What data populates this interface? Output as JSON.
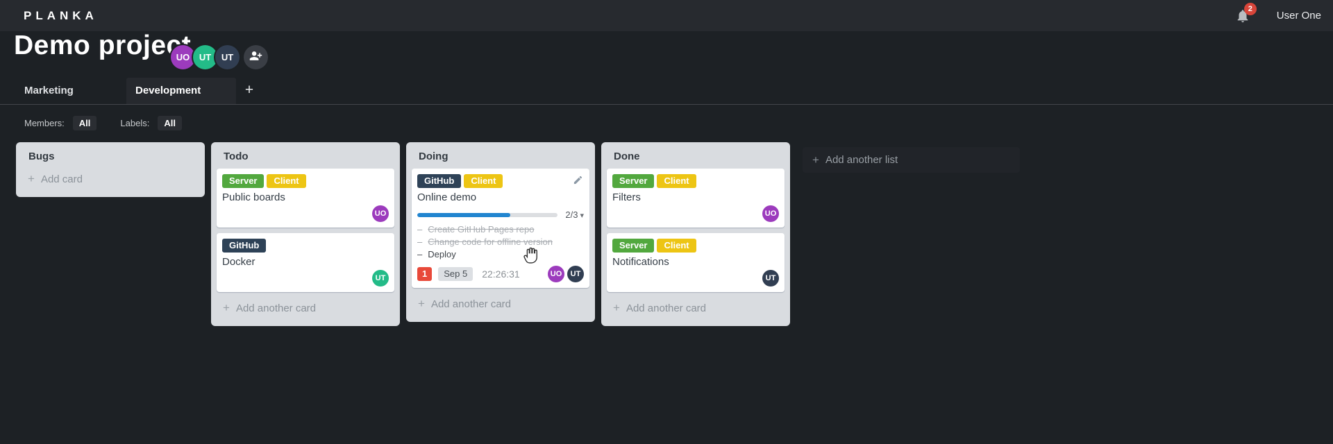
{
  "theme": {
    "topbar_bg": "#272a2f",
    "body_bg": "#1d2125",
    "list_bg": "#d9dce0",
    "card_bg": "#ffffff",
    "progress_blue": "#2185d0",
    "danger_red": "#e8493a"
  },
  "header": {
    "logo": "PLANKA",
    "notification_icon": "bell-icon",
    "notification_count": "2",
    "user_name": "User One"
  },
  "project": {
    "title": "Demo project",
    "members": [
      {
        "initials": "UO",
        "color": "#9c3bbd"
      },
      {
        "initials": "UT",
        "color": "#23bb88"
      },
      {
        "initials": "UT",
        "color": "#313e52"
      }
    ],
    "add_member_icon": "add-user-icon"
  },
  "tabs": {
    "items": [
      {
        "label": "Marketing",
        "active": false
      },
      {
        "label": "Development",
        "active": true
      }
    ],
    "add_label": "+"
  },
  "filters": {
    "members_label": "Members:",
    "members_value": "All",
    "labels_label": "Labels:",
    "labels_value": "All"
  },
  "board": {
    "add_list_plus": "+",
    "add_list_label": "Add another list",
    "lists": [
      {
        "title": "Bugs",
        "footer_plus": "+",
        "footer": "Add card",
        "cards": []
      },
      {
        "title": "Todo",
        "footer_plus": "+",
        "footer": "Add another card",
        "cards": [
          {
            "labels": [
              {
                "text": "Server",
                "color": "#52a83e"
              },
              {
                "text": "Client",
                "color": "#edc514"
              }
            ],
            "title": "Public boards",
            "members": [
              {
                "initials": "UO",
                "color": "#9c3bbd"
              }
            ]
          },
          {
            "labels": [
              {
                "text": "GitHub",
                "color": "#2e4257"
              }
            ],
            "title": "Docker",
            "members": [
              {
                "initials": "UT",
                "color": "#23bb88"
              }
            ]
          }
        ]
      },
      {
        "title": "Doing",
        "footer_plus": "+",
        "footer": "Add another card",
        "cards": [
          {
            "labels": [
              {
                "text": "GitHub",
                "color": "#2e4257"
              },
              {
                "text": "Client",
                "color": "#edc514"
              }
            ],
            "title": "Online demo",
            "edit_icon": "pencil-icon",
            "progress": {
              "percent": 66,
              "label": "2/3",
              "caret": "▾",
              "caret_icon": "caret-down-icon"
            },
            "tasks": [
              {
                "dash": "–",
                "text": "Create GitHub Pages repo",
                "done": true
              },
              {
                "dash": "–",
                "text": "Change code for offline version",
                "done": true
              },
              {
                "dash": "–",
                "text": "Deploy",
                "done": false
              }
            ],
            "notification_count": "1",
            "due_date": "Sep 5",
            "timer": "22:26:31",
            "members": [
              {
                "initials": "UO",
                "color": "#9c3bbd"
              },
              {
                "initials": "UT",
                "color": "#313e52"
              }
            ]
          }
        ]
      },
      {
        "title": "Done",
        "footer_plus": "+",
        "footer": "Add another card",
        "cards": [
          {
            "labels": [
              {
                "text": "Server",
                "color": "#52a83e"
              },
              {
                "text": "Client",
                "color": "#edc514"
              }
            ],
            "title": "Filters",
            "members": [
              {
                "initials": "UO",
                "color": "#9c3bbd"
              }
            ]
          },
          {
            "labels": [
              {
                "text": "Server",
                "color": "#52a83e"
              },
              {
                "text": "Client",
                "color": "#edc514"
              }
            ],
            "title": "Notifications",
            "members": [
              {
                "initials": "UT",
                "color": "#313e52"
              }
            ]
          }
        ]
      }
    ]
  },
  "cursor": {
    "icon": "hand-cursor"
  }
}
